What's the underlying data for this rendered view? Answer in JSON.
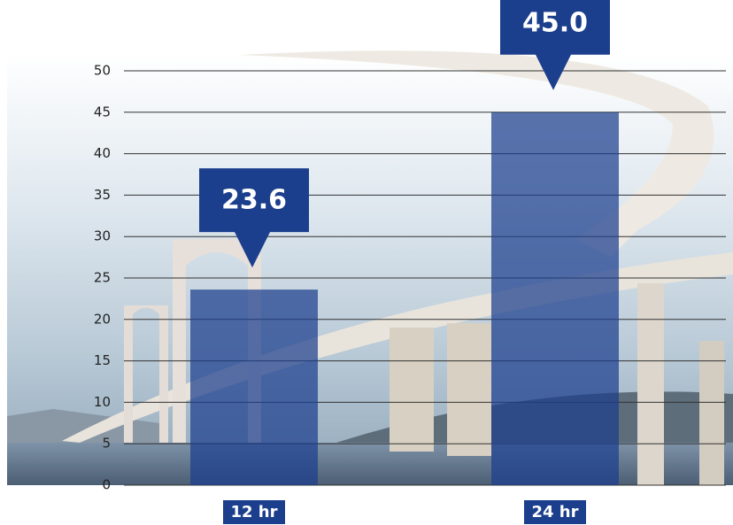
{
  "chart_data": {
    "type": "bar",
    "categories": [
      "12 hr",
      "24 hr"
    ],
    "values": [
      23.6,
      45.0
    ],
    "value_labels": [
      "23.6",
      "45.0"
    ],
    "color": "#1c3f8d",
    "ylim": [
      0,
      50
    ],
    "yticks": [
      0,
      5,
      10,
      15,
      20,
      25,
      30,
      35,
      40,
      45,
      50
    ],
    "grid": true
  }
}
